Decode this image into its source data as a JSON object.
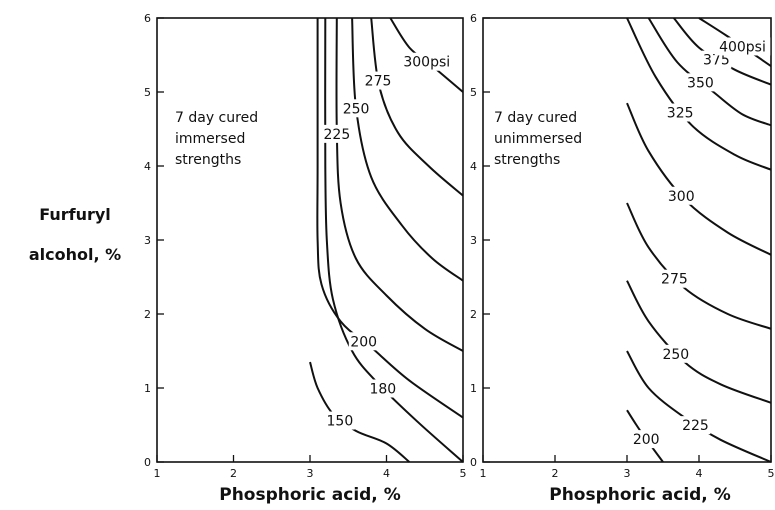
{
  "y_axis_label": [
    "Furfuryl",
    "alcohol, %"
  ],
  "x_axis_label": "Phosphoric acid, %",
  "chart_data": [
    {
      "type": "contour",
      "annotation": [
        "7 day cured",
        "immersed",
        "strengths"
      ],
      "xlim": [
        1,
        5
      ],
      "ylim": [
        0,
        6
      ],
      "x_ticks": [
        "1",
        "2",
        "3",
        "4",
        "5"
      ],
      "y_ticks": [
        "0",
        "1",
        "2",
        "3",
        "4",
        "5",
        "6"
      ],
      "grid": false,
      "contours": [
        {
          "label": "150",
          "points": [
            [
              3.0,
              1.35
            ],
            [
              3.1,
              1.0
            ],
            [
              3.3,
              0.65
            ],
            [
              3.6,
              0.42
            ],
            [
              4.0,
              0.25
            ],
            [
              4.3,
              0.0
            ]
          ]
        },
        {
          "label": "180",
          "points": [
            [
              3.2,
              6.0
            ],
            [
              3.2,
              4.0
            ],
            [
              3.22,
              3.0
            ],
            [
              3.3,
              2.2
            ],
            [
              3.55,
              1.5
            ],
            [
              3.9,
              1.05
            ],
            [
              4.4,
              0.55
            ],
            [
              5.0,
              0.0
            ]
          ]
        },
        {
          "label": "200",
          "points": [
            [
              3.1,
              6.0
            ],
            [
              3.1,
              4.0
            ],
            [
              3.1,
              3.0
            ],
            [
              3.15,
              2.4
            ],
            [
              3.4,
              1.9
            ],
            [
              3.8,
              1.55
            ],
            [
              4.3,
              1.1
            ],
            [
              5.0,
              0.6
            ]
          ]
        },
        {
          "label": "225",
          "points": [
            [
              3.35,
              6.0
            ],
            [
              3.35,
              4.5
            ],
            [
              3.4,
              3.5
            ],
            [
              3.6,
              2.75
            ],
            [
              4.0,
              2.25
            ],
            [
              4.5,
              1.8
            ],
            [
              5.0,
              1.5
            ]
          ]
        },
        {
          "label": "250",
          "points": [
            [
              3.55,
              6.0
            ],
            [
              3.6,
              4.8
            ],
            [
              3.8,
              3.85
            ],
            [
              4.2,
              3.2
            ],
            [
              4.6,
              2.75
            ],
            [
              5.0,
              2.45
            ]
          ]
        },
        {
          "label": "275",
          "points": [
            [
              3.8,
              6.0
            ],
            [
              3.9,
              5.1
            ],
            [
              4.15,
              4.45
            ],
            [
              4.55,
              4.0
            ],
            [
              5.0,
              3.6
            ]
          ]
        },
        {
          "label": "300psi",
          "points": [
            [
              4.05,
              6.0
            ],
            [
              4.3,
              5.6
            ],
            [
              4.6,
              5.35
            ],
            [
              5.0,
              5.0
            ]
          ]
        }
      ]
    },
    {
      "type": "contour",
      "annotation": [
        "7 day cured",
        "unimmersed",
        "strengths"
      ],
      "xlim": [
        1,
        5
      ],
      "ylim": [
        0,
        6
      ],
      "x_ticks": [
        "1",
        "2",
        "3",
        "4",
        "5"
      ],
      "y_ticks": [
        "0",
        "1",
        "2",
        "3",
        "4",
        "5",
        "6"
      ],
      "grid": false,
      "contours": [
        {
          "label": "200",
          "points": [
            [
              3.0,
              0.7
            ],
            [
              3.2,
              0.4
            ],
            [
              3.5,
              0.0
            ]
          ]
        },
        {
          "label": "225",
          "points": [
            [
              3.0,
              1.5
            ],
            [
              3.3,
              1.0
            ],
            [
              3.8,
              0.6
            ],
            [
              4.3,
              0.3
            ],
            [
              5.0,
              0.0
            ]
          ]
        },
        {
          "label": "250",
          "points": [
            [
              3.0,
              2.45
            ],
            [
              3.3,
              1.9
            ],
            [
              3.8,
              1.35
            ],
            [
              4.3,
              1.05
            ],
            [
              5.0,
              0.8
            ]
          ]
        },
        {
          "label": "275",
          "points": [
            [
              3.0,
              3.5
            ],
            [
              3.3,
              2.9
            ],
            [
              3.8,
              2.35
            ],
            [
              4.4,
              2.0
            ],
            [
              5.0,
              1.8
            ]
          ]
        },
        {
          "label": "300",
          "points": [
            [
              3.0,
              4.85
            ],
            [
              3.3,
              4.2
            ],
            [
              3.8,
              3.55
            ],
            [
              4.4,
              3.1
            ],
            [
              5.0,
              2.8
            ]
          ]
        },
        {
          "label": "325",
          "points": [
            [
              3.0,
              6.0
            ],
            [
              3.4,
              5.2
            ],
            [
              3.9,
              4.55
            ],
            [
              4.5,
              4.15
            ],
            [
              5.0,
              3.95
            ]
          ]
        },
        {
          "label": "350",
          "points": [
            [
              3.3,
              6.0
            ],
            [
              3.7,
              5.4
            ],
            [
              4.2,
              5.0
            ],
            [
              4.6,
              4.7
            ],
            [
              5.0,
              4.55
            ]
          ]
        },
        {
          "label": "375",
          "points": [
            [
              3.65,
              6.0
            ],
            [
              4.0,
              5.6
            ],
            [
              4.5,
              5.3
            ],
            [
              5.0,
              5.1
            ]
          ]
        },
        {
          "label": "400psi",
          "points": [
            [
              4.0,
              6.0
            ],
            [
              4.4,
              5.75
            ],
            [
              5.0,
              5.35
            ]
          ]
        }
      ]
    }
  ]
}
